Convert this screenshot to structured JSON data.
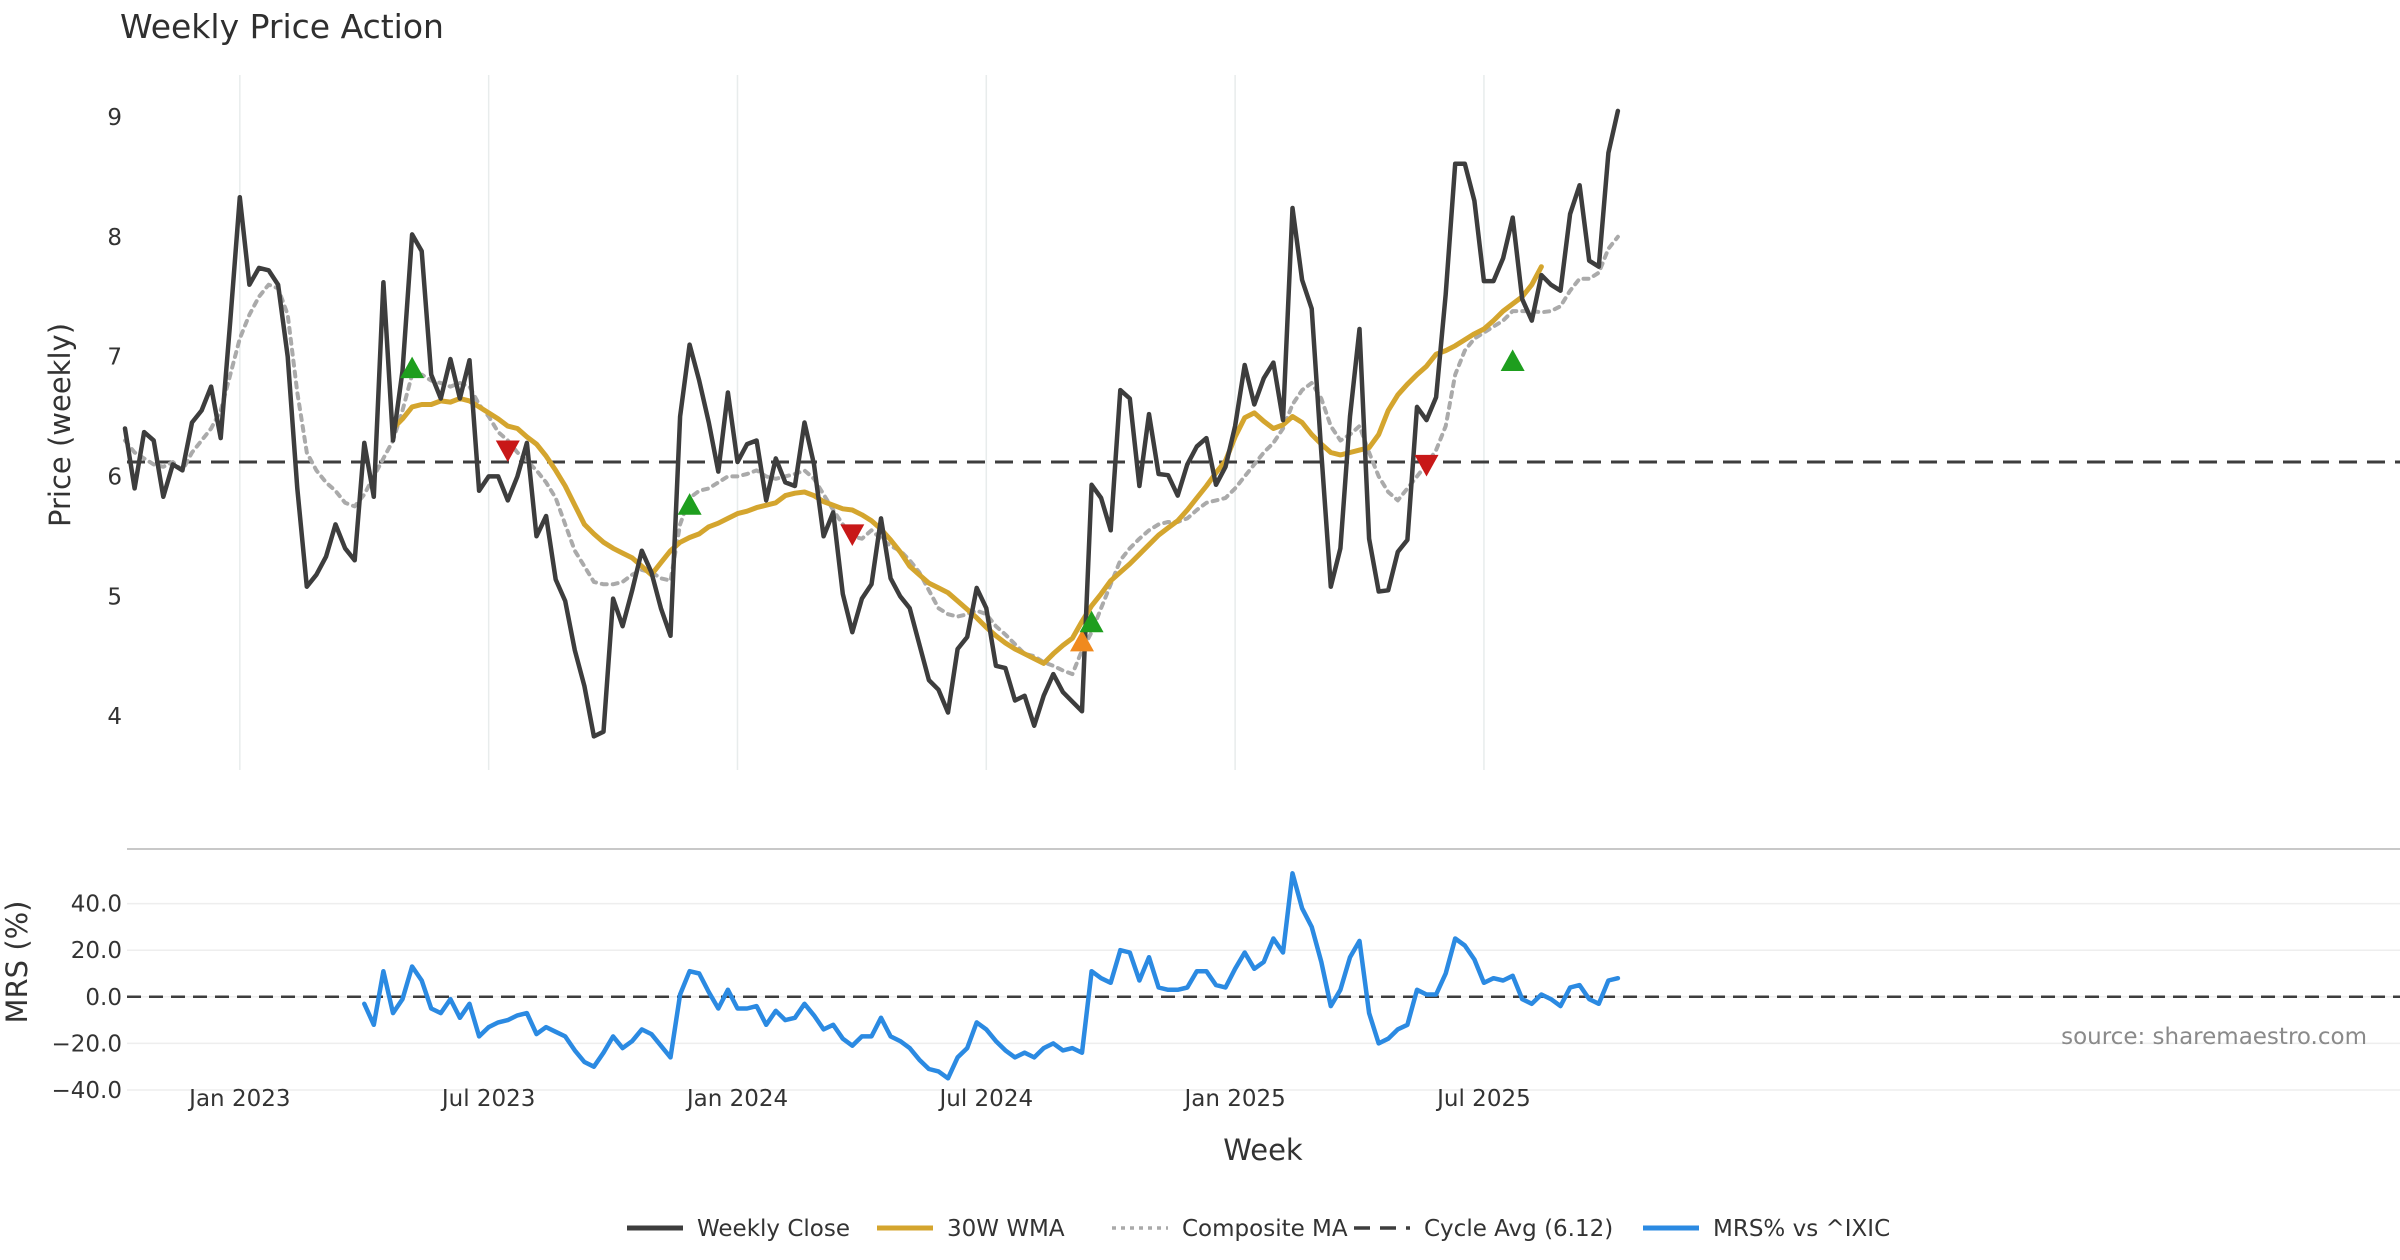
{
  "chart_data": {
    "type": "line",
    "title": "Weekly Price Action",
    "xlabel": "Week",
    "source_note": "source: sharemaestro.com",
    "x_ticks": [
      "Jan 2023",
      "Jul 2023",
      "Jan 2024",
      "Jul 2024",
      "Jan 2025",
      "Jul 2025"
    ],
    "x_tick_weeks": [
      12,
      38,
      64,
      90,
      116,
      142
    ],
    "price_panel": {
      "ylabel": "Price (weekly)",
      "ylim": [
        3.55,
        9.35
      ],
      "y_ticks": [
        4,
        5,
        6,
        7,
        8,
        9
      ],
      "cycle_avg": 6.12,
      "series": [
        {
          "name": "Weekly Close",
          "color": "#3d3d3d",
          "values": [
            6.4,
            5.9,
            6.37,
            6.3,
            5.83,
            6.1,
            6.05,
            6.45,
            6.55,
            6.75,
            6.32,
            7.3,
            8.33,
            7.6,
            7.74,
            7.72,
            7.6,
            7.0,
            5.9,
            5.08,
            5.18,
            5.33,
            5.6,
            5.4,
            5.3,
            6.28,
            5.83,
            7.62,
            6.3,
            6.88,
            8.02,
            7.88,
            6.85,
            6.65,
            6.98,
            6.65,
            6.97,
            5.88,
            6.0,
            6.0,
            5.8,
            6.0,
            6.28,
            5.5,
            5.67,
            5.14,
            4.96,
            4.55,
            4.25,
            3.83,
            3.87,
            4.98,
            4.75,
            5.05,
            5.38,
            5.2,
            4.9,
            4.67,
            6.5,
            7.1,
            6.8,
            6.45,
            6.04,
            6.7,
            6.12,
            6.27,
            6.3,
            5.8,
            6.15,
            5.95,
            5.92,
            6.45,
            6.1,
            5.5,
            5.7,
            5.02,
            4.7,
            4.98,
            5.1,
            5.65,
            5.15,
            5.0,
            4.9,
            4.6,
            4.3,
            4.22,
            4.03,
            4.56,
            4.66,
            5.07,
            4.9,
            4.42,
            4.4,
            4.13,
            4.17,
            3.92,
            4.17,
            4.35,
            4.2,
            4.12,
            4.04,
            5.93,
            5.82,
            5.55,
            6.72,
            6.65,
            5.92,
            6.52,
            6.02,
            6.01,
            5.84,
            6.1,
            6.25,
            6.32,
            5.93,
            6.08,
            6.42,
            6.93,
            6.6,
            6.82,
            6.95,
            6.47,
            8.24,
            7.64,
            7.4,
            6.2,
            5.08,
            5.4,
            6.5,
            7.23,
            5.48,
            5.04,
            5.05,
            5.37,
            5.47,
            6.58,
            6.47,
            6.66,
            7.52,
            8.61,
            8.61,
            8.3,
            7.63,
            7.63,
            7.82,
            8.16,
            7.48,
            7.3,
            7.68,
            7.6,
            7.55,
            8.19,
            8.43,
            7.8,
            7.75,
            8.7,
            9.05
          ]
        },
        {
          "name": "30W WMA",
          "color": "#d4a52e",
          "start_week": 28,
          "values": [
            6.4,
            6.48,
            6.58,
            6.6,
            6.6,
            6.63,
            6.62,
            6.65,
            6.63,
            6.58,
            6.53,
            6.48,
            6.42,
            6.4,
            6.33,
            6.27,
            6.17,
            6.05,
            5.92,
            5.76,
            5.6,
            5.52,
            5.45,
            5.4,
            5.36,
            5.32,
            5.25,
            5.18,
            5.28,
            5.38,
            5.45,
            5.49,
            5.52,
            5.58,
            5.61,
            5.65,
            5.69,
            5.71,
            5.74,
            5.76,
            5.78,
            5.84,
            5.86,
            5.87,
            5.84,
            5.79,
            5.76,
            5.73,
            5.72,
            5.68,
            5.63,
            5.56,
            5.47,
            5.37,
            5.25,
            5.18,
            5.11,
            5.07,
            5.03,
            4.96,
            4.89,
            4.82,
            4.74,
            4.67,
            4.61,
            4.56,
            4.52,
            4.48,
            4.44,
            4.52,
            4.59,
            4.65,
            4.79,
            4.92,
            5.02,
            5.13,
            5.2,
            5.27,
            5.35,
            5.43,
            5.51,
            5.57,
            5.63,
            5.72,
            5.82,
            5.92,
            6.03,
            6.13,
            6.33,
            6.49,
            6.53,
            6.46,
            6.4,
            6.43,
            6.5,
            6.45,
            6.35,
            6.27,
            6.2,
            6.18,
            6.2,
            6.22,
            6.24,
            6.35,
            6.55,
            6.68,
            6.77,
            6.85,
            6.92,
            7.02,
            7.05,
            7.09,
            7.14,
            7.19,
            7.23,
            7.3,
            7.38,
            7.44,
            7.5,
            7.6,
            7.75
          ]
        },
        {
          "name": "Composite MA",
          "color": "#aaaaaa",
          "values": [
            6.3,
            6.2,
            6.15,
            6.1,
            6.08,
            6.12,
            6.05,
            6.2,
            6.3,
            6.4,
            6.55,
            6.85,
            7.15,
            7.35,
            7.5,
            7.6,
            7.57,
            7.35,
            6.7,
            6.2,
            6.05,
            5.95,
            5.88,
            5.78,
            5.75,
            5.85,
            6.0,
            6.15,
            6.3,
            6.55,
            6.85,
            6.85,
            6.8,
            6.78,
            6.75,
            6.78,
            6.75,
            6.6,
            6.5,
            6.37,
            6.3,
            6.2,
            6.13,
            6.05,
            5.95,
            5.82,
            5.6,
            5.38,
            5.25,
            5.12,
            5.1,
            5.1,
            5.12,
            5.18,
            5.22,
            5.2,
            5.15,
            5.13,
            5.6,
            5.82,
            5.88,
            5.9,
            5.95,
            6.0,
            6.0,
            6.02,
            6.05,
            6.0,
            5.98,
            6.0,
            6.02,
            6.05,
            5.98,
            5.85,
            5.72,
            5.6,
            5.5,
            5.48,
            5.55,
            5.48,
            5.42,
            5.38,
            5.3,
            5.2,
            5.05,
            4.9,
            4.85,
            4.83,
            4.85,
            4.88,
            4.85,
            4.75,
            4.68,
            4.6,
            4.52,
            4.5,
            4.45,
            4.42,
            4.38,
            4.35,
            4.55,
            4.7,
            4.9,
            5.1,
            5.3,
            5.4,
            5.48,
            5.55,
            5.6,
            5.62,
            5.62,
            5.65,
            5.72,
            5.78,
            5.8,
            5.82,
            5.9,
            6.0,
            6.1,
            6.2,
            6.28,
            6.4,
            6.6,
            6.72,
            6.78,
            6.65,
            6.42,
            6.3,
            6.35,
            6.42,
            6.2,
            6.0,
            5.87,
            5.8,
            5.9,
            6.0,
            6.1,
            6.22,
            6.42,
            6.85,
            7.05,
            7.15,
            7.2,
            7.25,
            7.3,
            7.38,
            7.38,
            7.38,
            7.37,
            7.38,
            7.42,
            7.55,
            7.65,
            7.65,
            7.7,
            7.9,
            8.0
          ]
        }
      ],
      "signals": [
        {
          "kind": "up",
          "color": "#1e9e1e",
          "week": 30,
          "value": 6.9
        },
        {
          "kind": "down",
          "color": "#c81818",
          "week": 40,
          "value": 6.22
        },
        {
          "kind": "up",
          "color": "#1e9e1e",
          "week": 59,
          "value": 5.76
        },
        {
          "kind": "down",
          "color": "#c81818",
          "week": 76,
          "value": 5.52
        },
        {
          "kind": "up",
          "color": "#f08a1e",
          "week": 100,
          "value": 4.62
        },
        {
          "kind": "up",
          "color": "#1e9e1e",
          "week": 101,
          "value": 4.78
        },
        {
          "kind": "down",
          "color": "#c81818",
          "week": 136,
          "value": 6.1
        },
        {
          "kind": "up",
          "color": "#1e9e1e",
          "week": 145,
          "value": 6.96
        }
      ]
    },
    "mrs_panel": {
      "ylabel": "MRS (%)",
      "ylim": [
        -40,
        60
      ],
      "y_ticks": [
        40,
        20,
        0,
        -20,
        -40
      ],
      "y_tick_labels": [
        "40.0",
        "20.0",
        "0.0",
        "−20.0",
        "−40.0"
      ],
      "series": [
        {
          "name": "MRS% vs ^IXIC",
          "color": "#2b8ae2",
          "start_week": 25,
          "values": [
            -3,
            -12,
            11,
            -7,
            -1,
            13,
            7,
            -5,
            -7,
            -1,
            -9,
            -3,
            -17,
            -13,
            -11,
            -10,
            -8,
            -7,
            -16,
            -13,
            -15,
            -17,
            -23,
            -28,
            -30,
            -24,
            -17,
            -22,
            -19,
            -14,
            -16,
            -21,
            -26,
            1,
            11,
            10,
            2,
            -5,
            3,
            -5,
            -5,
            -4,
            -12,
            -6,
            -10,
            -9,
            -3,
            -8,
            -14,
            -12,
            -18,
            -21,
            -17,
            -17,
            -9,
            -17,
            -19,
            -22,
            -27,
            -31,
            -32,
            -35,
            -26,
            -22,
            -11,
            -14,
            -19,
            -23,
            -26,
            -24,
            -26,
            -22,
            -20,
            -23,
            -22,
            -24,
            11,
            8,
            6,
            20,
            19,
            7,
            17,
            4,
            3,
            3,
            4,
            11,
            11,
            5,
            4,
            12,
            19,
            12,
            15,
            25,
            19,
            53,
            38,
            30,
            15,
            -4,
            3,
            17,
            24,
            -7,
            -20,
            -18,
            -14,
            -12,
            3,
            1,
            1,
            10,
            25,
            22,
            16,
            6,
            8,
            7,
            9,
            -1,
            -3,
            1,
            -1,
            -4,
            4,
            5,
            -1,
            -3,
            7,
            8
          ]
        }
      ]
    },
    "legend": [
      {
        "label": "Weekly Close",
        "color": "#3d3d3d",
        "style": "solid"
      },
      {
        "label": "30W WMA",
        "color": "#d4a52e",
        "style": "solid"
      },
      {
        "label": "Composite MA",
        "color": "#aaaaaa",
        "style": "dotted"
      },
      {
        "label": "Cycle Avg (6.12)",
        "color": "#3d3d3d",
        "style": "dashed"
      },
      {
        "label": "MRS% vs ^IXIC",
        "color": "#2b8ae2",
        "style": "solid"
      }
    ]
  }
}
